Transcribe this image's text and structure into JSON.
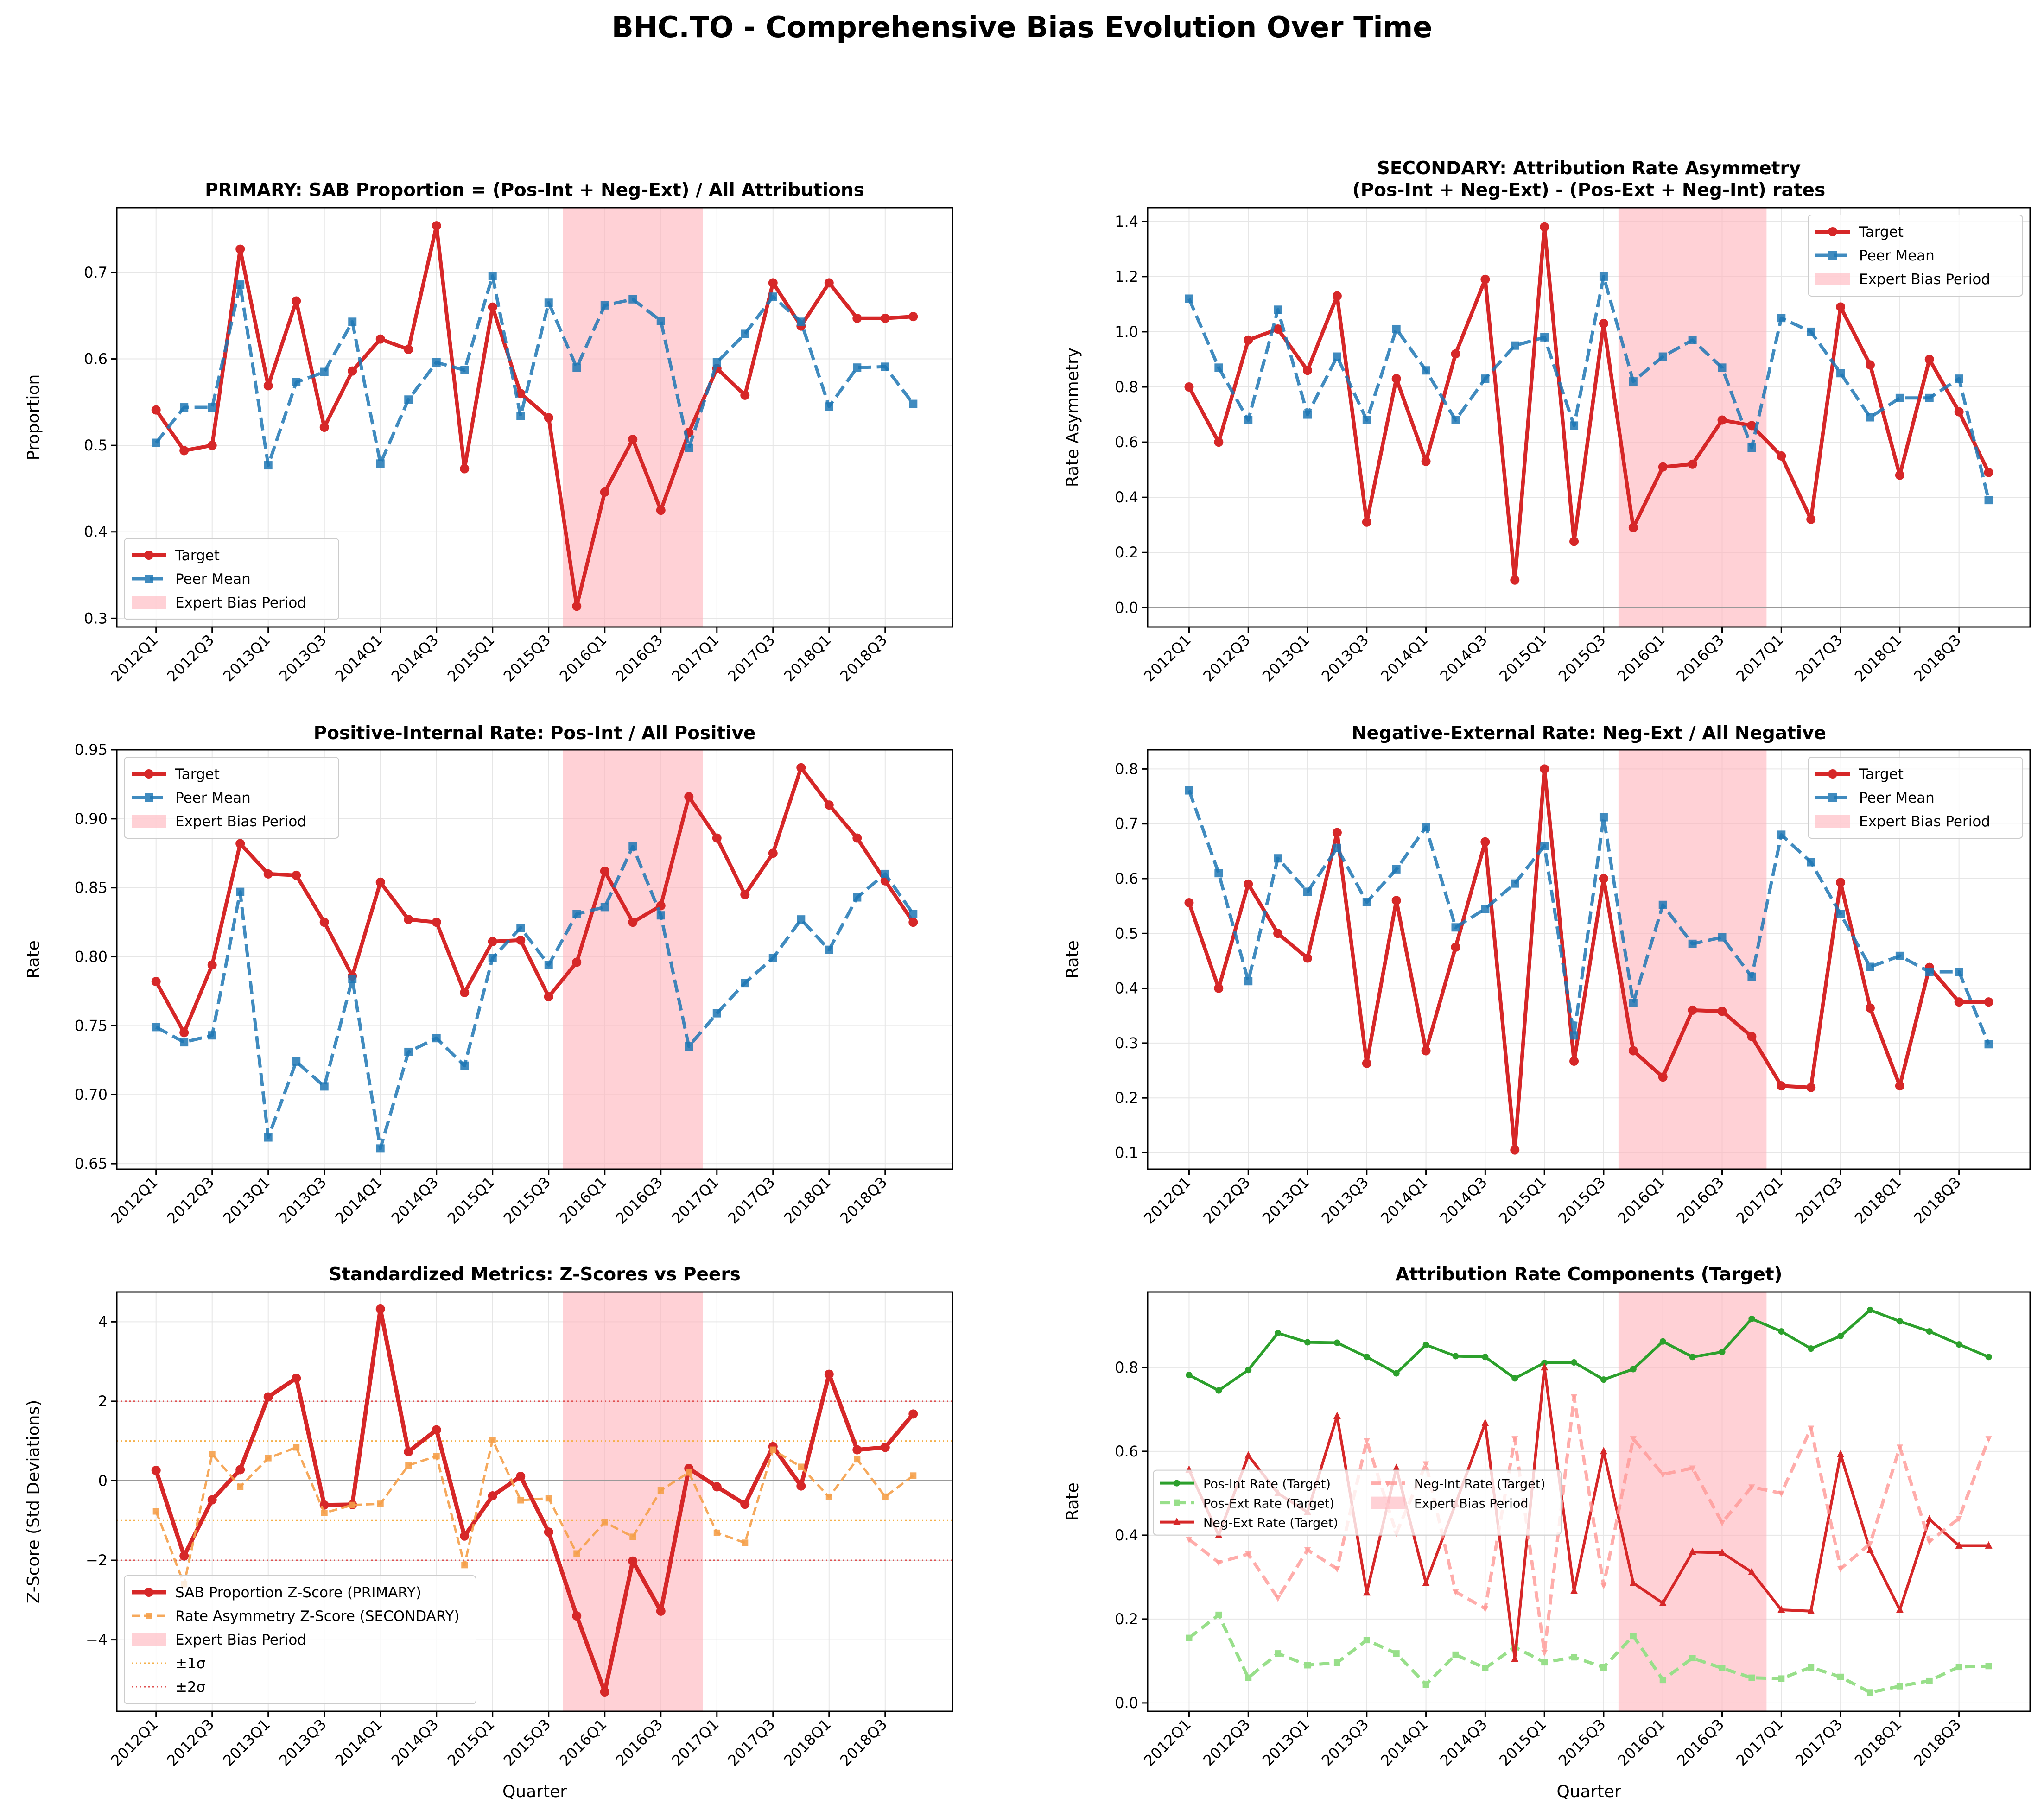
{
  "figure_title": "BHC.TO - Comprehensive Bias Evolution Over Time",
  "quarters": [
    "2012Q1",
    "2012Q2",
    "2012Q3",
    "2012Q4",
    "2013Q1",
    "2013Q2",
    "2013Q3",
    "2013Q4",
    "2014Q1",
    "2014Q2",
    "2014Q3",
    "2014Q4",
    "2015Q1",
    "2015Q2",
    "2015Q3",
    "2015Q4",
    "2016Q1",
    "2016Q2",
    "2016Q3",
    "2016Q4",
    "2017Q1",
    "2017Q2",
    "2017Q3",
    "2017Q4",
    "2018Q1",
    "2018Q2",
    "2018Q3",
    "2018Q4"
  ],
  "tick_labels": [
    "2012Q1",
    "2012Q3",
    "2013Q1",
    "2013Q3",
    "2014Q1",
    "2014Q3",
    "2015Q1",
    "2015Q3",
    "2016Q1",
    "2016Q3",
    "2017Q1",
    "2017Q3",
    "2018Q1",
    "2018Q3"
  ],
  "colors": {
    "target": "#d62728",
    "peer": "#1f77b4",
    "shade": "#ffb3ba",
    "green": "#2ca02c",
    "lightgreen": "#98df8a",
    "pink": "#ff9896",
    "orange": "#ff7f0e"
  },
  "chart_data": [
    {
      "type": "line",
      "title": "PRIMARY: SAB Proportion = (Pos-Int + Neg-Ext) / All Attributions",
      "xlabel": "",
      "ylabel": "Proportion",
      "ylim": [
        0.29,
        0.775
      ],
      "yticks": [
        0.3,
        0.4,
        0.5,
        0.6,
        0.7
      ],
      "ytick_labels": [
        "0.3",
        "0.4",
        "0.5",
        "0.6",
        "0.7"
      ],
      "bias_period": [
        "2015Q4",
        "2016Q4"
      ],
      "legend_position": "lower-left",
      "legend": [
        "Target",
        "Peer Mean",
        "Expert Bias Period"
      ],
      "series": [
        {
          "name": "Target",
          "values": [
            0.541,
            0.494,
            0.5,
            0.727,
            0.569,
            0.667,
            0.521,
            0.586,
            0.623,
            0.611,
            0.754,
            0.473,
            0.66,
            0.56,
            0.532,
            0.314,
            0.446,
            0.507,
            0.425,
            0.515,
            0.589,
            0.558,
            0.688,
            0.638,
            0.688,
            0.647,
            0.647,
            0.649
          ]
        },
        {
          "name": "Peer Mean",
          "values": [
            0.503,
            0.544,
            0.544,
            0.686,
            0.477,
            0.573,
            0.585,
            0.643,
            0.479,
            0.553,
            0.596,
            0.587,
            0.696,
            0.534,
            0.665,
            0.59,
            0.662,
            0.669,
            0.644,
            0.497,
            0.596,
            0.629,
            0.672,
            0.643,
            0.545,
            0.59,
            0.591,
            0.548
          ]
        }
      ]
    },
    {
      "type": "line",
      "title": "SECONDARY: Attribution Rate Asymmetry",
      "subtitle": "(Pos-Int + Neg-Ext) - (Pos-Ext + Neg-Int) rates",
      "xlabel": "",
      "ylabel": "Rate Asymmetry",
      "ylim": [
        -0.07,
        1.45
      ],
      "yticks": [
        0,
        0.2,
        0.4,
        0.6,
        0.8,
        1.0,
        1.2,
        1.4
      ],
      "ytick_labels": [
        "0.0",
        "0.2",
        "0.4",
        "0.6",
        "0.8",
        "1.0",
        "1.2",
        "1.4"
      ],
      "hlines": [
        {
          "y": 0,
          "kind": "zero"
        }
      ],
      "bias_period": [
        "2015Q4",
        "2016Q4"
      ],
      "legend_position": "upper-right",
      "legend": [
        "Target",
        "Peer Mean",
        "Expert Bias Period"
      ],
      "series": [
        {
          "name": "Target",
          "values": [
            0.8,
            0.6,
            0.97,
            1.01,
            0.86,
            1.13,
            0.31,
            0.83,
            0.53,
            0.92,
            1.19,
            0.1,
            1.38,
            0.24,
            1.03,
            0.29,
            0.51,
            0.52,
            0.68,
            0.66,
            0.55,
            0.32,
            1.09,
            0.88,
            0.48,
            0.9,
            0.71,
            0.49
          ]
        },
        {
          "name": "Peer Mean",
          "values": [
            1.12,
            0.87,
            0.68,
            1.08,
            0.7,
            0.91,
            0.68,
            1.01,
            0.86,
            0.68,
            0.83,
            0.95,
            0.98,
            0.66,
            1.2,
            0.82,
            0.91,
            0.97,
            0.87,
            0.58,
            1.05,
            1.0,
            0.85,
            0.69,
            0.76,
            0.76,
            0.83,
            0.39
          ]
        }
      ]
    },
    {
      "type": "line",
      "title": "Positive-Internal Rate: Pos-Int / All Positive",
      "xlabel": "",
      "ylabel": "Rate",
      "ylim": [
        0.646,
        0.95
      ],
      "yticks": [
        0.65,
        0.7,
        0.75,
        0.8,
        0.85,
        0.9,
        0.95
      ],
      "ytick_labels": [
        "0.65",
        "0.70",
        "0.75",
        "0.80",
        "0.85",
        "0.90",
        "0.95"
      ],
      "bias_period": [
        "2015Q4",
        "2016Q4"
      ],
      "legend_position": "upper-left",
      "legend": [
        "Target",
        "Peer Mean",
        "Expert Bias Period"
      ],
      "series": [
        {
          "name": "Target",
          "values": [
            0.782,
            0.745,
            0.794,
            0.882,
            0.86,
            0.859,
            0.825,
            0.786,
            0.854,
            0.827,
            0.825,
            0.774,
            0.811,
            0.812,
            0.771,
            0.796,
            0.862,
            0.825,
            0.837,
            0.916,
            0.886,
            0.845,
            0.875,
            0.937,
            0.91,
            0.886,
            0.855,
            0.825
          ]
        },
        {
          "name": "Peer Mean",
          "values": [
            0.749,
            0.738,
            0.743,
            0.847,
            0.669,
            0.724,
            0.706,
            0.784,
            0.661,
            0.731,
            0.741,
            0.721,
            0.799,
            0.821,
            0.794,
            0.831,
            0.836,
            0.88,
            0.83,
            0.735,
            0.759,
            0.781,
            0.799,
            0.827,
            0.805,
            0.843,
            0.86,
            0.831
          ]
        }
      ]
    },
    {
      "type": "line",
      "title": "Negative-External Rate: Neg-Ext / All Negative",
      "xlabel": "",
      "ylabel": "Rate",
      "ylim": [
        0.07,
        0.835
      ],
      "yticks": [
        0.1,
        0.2,
        0.3,
        0.4,
        0.5,
        0.6,
        0.7,
        0.8
      ],
      "ytick_labels": [
        "0.1",
        "0.2",
        "0.3",
        "0.4",
        "0.5",
        "0.6",
        "0.7",
        "0.8"
      ],
      "bias_period": [
        "2015Q4",
        "2016Q4"
      ],
      "legend_position": "upper-right",
      "legend": [
        "Target",
        "Peer Mean",
        "Expert Bias Period"
      ],
      "series": [
        {
          "name": "Target",
          "values": [
            0.556,
            0.4,
            0.59,
            0.5,
            0.455,
            0.684,
            0.263,
            0.56,
            0.286,
            0.475,
            0.667,
            0.105,
            0.8,
            0.267,
            0.6,
            0.286,
            0.238,
            0.36,
            0.358,
            0.312,
            0.222,
            0.219,
            0.593,
            0.364,
            0.222,
            0.438,
            0.375,
            0.375
          ]
        },
        {
          "name": "Peer Mean",
          "values": [
            0.761,
            0.61,
            0.413,
            0.637,
            0.576,
            0.656,
            0.557,
            0.617,
            0.694,
            0.511,
            0.545,
            0.591,
            0.66,
            0.314,
            0.712,
            0.373,
            0.552,
            0.481,
            0.493,
            0.421,
            0.68,
            0.63,
            0.535,
            0.439,
            0.459,
            0.43,
            0.43,
            0.298
          ]
        }
      ]
    },
    {
      "type": "line",
      "title": "Standardized Metrics: Z-Scores vs Peers",
      "xlabel": "Quarter",
      "ylabel": "Z-Score (Std Deviations)",
      "ylim": [
        -5.8,
        4.75
      ],
      "yticks": [
        -4,
        -2,
        0,
        2,
        4
      ],
      "ytick_labels": [
        "−4",
        "−2",
        "0",
        "2",
        "4"
      ],
      "hlines": [
        {
          "y": 0,
          "kind": "zero"
        },
        {
          "y": 1,
          "kind": "sigma1"
        },
        {
          "y": -1,
          "kind": "sigma1"
        },
        {
          "y": 2,
          "kind": "sigma2"
        },
        {
          "y": -2,
          "kind": "sigma2"
        }
      ],
      "bias_period": [
        "2015Q4",
        "2016Q4"
      ],
      "legend_position": "lower-left",
      "legend": [
        "SAB Proportion Z-Score (PRIMARY)",
        "Rate Asymmetry Z-Score (SECONDARY)",
        "Expert Bias Period",
        "±1σ",
        "±2σ"
      ],
      "series": [
        {
          "name": "SAB Proportion Z-Score (PRIMARY)",
          "values": [
            0.26,
            -1.89,
            -0.48,
            0.28,
            2.11,
            2.58,
            -0.61,
            -0.6,
            4.32,
            0.73,
            1.28,
            -1.39,
            -0.38,
            0.11,
            -1.29,
            -3.4,
            -5.31,
            -2.02,
            -3.28,
            0.31,
            -0.15,
            -0.59,
            0.86,
            -0.13,
            2.68,
            0.78,
            0.84,
            1.68
          ]
        },
        {
          "name": "Rate Asymmetry Z-Score (SECONDARY)",
          "values": [
            -0.77,
            -2.6,
            0.67,
            -0.15,
            0.57,
            0.84,
            -0.81,
            -0.61,
            -0.58,
            0.39,
            0.62,
            -2.12,
            1.03,
            -0.49,
            -0.44,
            -1.83,
            -1.04,
            -1.41,
            -0.24,
            0.21,
            -1.31,
            -1.56,
            0.78,
            0.35,
            -0.41,
            0.54,
            -0.4,
            0.13
          ]
        }
      ]
    },
    {
      "type": "line",
      "title": "Attribution Rate Components (Target)",
      "xlabel": "Quarter",
      "ylabel": "Rate",
      "ylim": [
        -0.02,
        0.98
      ],
      "yticks": [
        0.0,
        0.2,
        0.4,
        0.6,
        0.8
      ],
      "ytick_labels": [
        "0.0",
        "0.2",
        "0.4",
        "0.6",
        "0.8"
      ],
      "bias_period": [
        "2015Q4",
        "2016Q4"
      ],
      "legend_position": "center-left",
      "legend": [
        "Pos-Int Rate (Target)",
        "Pos-Ext Rate (Target)",
        "Neg-Ext Rate (Target)",
        "Neg-Int Rate (Target)",
        "Expert Bias Period"
      ],
      "series": [
        {
          "name": "Pos-Int Rate (Target)",
          "values": [
            0.782,
            0.745,
            0.794,
            0.882,
            0.86,
            0.859,
            0.825,
            0.786,
            0.854,
            0.827,
            0.825,
            0.774,
            0.811,
            0.812,
            0.771,
            0.796,
            0.862,
            0.825,
            0.837,
            0.916,
            0.886,
            0.845,
            0.875,
            0.937,
            0.91,
            0.886,
            0.855,
            0.825
          ]
        },
        {
          "name": "Pos-Ext Rate (Target)",
          "values": [
            0.155,
            0.21,
            0.06,
            0.118,
            0.09,
            0.096,
            0.15,
            0.118,
            0.044,
            0.115,
            0.083,
            0.133,
            0.097,
            0.109,
            0.085,
            0.16,
            0.055,
            0.107,
            0.083,
            0.06,
            0.058,
            0.085,
            0.062,
            0.025,
            0.04,
            0.053,
            0.086,
            0.088
          ]
        },
        {
          "name": "Neg-Ext Rate (Target)",
          "values": [
            0.556,
            0.4,
            0.59,
            0.5,
            0.455,
            0.684,
            0.263,
            0.56,
            0.286,
            0.475,
            0.667,
            0.105,
            0.8,
            0.267,
            0.6,
            0.286,
            0.238,
            0.36,
            0.358,
            0.312,
            0.222,
            0.219,
            0.593,
            0.364,
            0.222,
            0.438,
            0.375,
            0.375
          ]
        },
        {
          "name": "Neg-Int Rate (Target)",
          "values": [
            0.39,
            0.335,
            0.355,
            0.25,
            0.365,
            0.32,
            0.625,
            0.405,
            0.57,
            0.265,
            0.225,
            0.63,
            0.12,
            0.73,
            0.28,
            0.63,
            0.545,
            0.56,
            0.43,
            0.515,
            0.5,
            0.655,
            0.32,
            0.38,
            0.61,
            0.385,
            0.44,
            0.63
          ]
        }
      ]
    }
  ]
}
